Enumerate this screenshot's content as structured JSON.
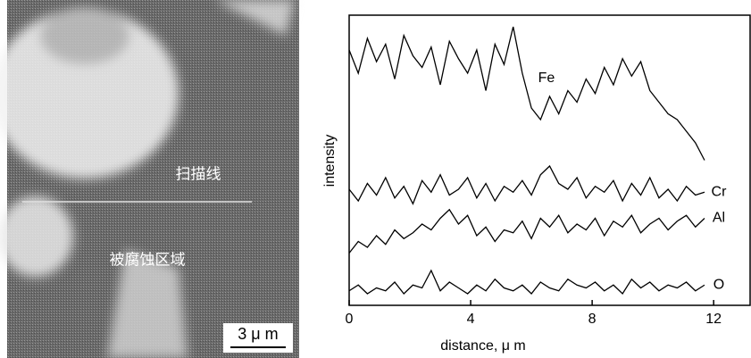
{
  "chart_data": {
    "type": "line",
    "x_label": "distance, μ m",
    "y_label": "intensity",
    "annotations": [
      "扫描线",
      "被腐蚀区域"
    ],
    "scale_bar": "3 μ m",
    "x": [
      0,
      0.3,
      0.6,
      0.9,
      1.2,
      1.5,
      1.8,
      2.1,
      2.4,
      2.7,
      3,
      3.3,
      3.6,
      3.9,
      4.2,
      4.5,
      4.8,
      5.1,
      5.4,
      5.7,
      6,
      6.3,
      6.6,
      6.9,
      7.2,
      7.5,
      7.8,
      8.1,
      8.4,
      8.7,
      9,
      9.3,
      9.6,
      9.9,
      10.2,
      10.5,
      10.8,
      11.1,
      11.4,
      11.7
    ],
    "series": [
      {
        "name": "Fe",
        "color": "#000000",
        "values": [
          88,
          80,
          92,
          84,
          90,
          78,
          93,
          86,
          82,
          89,
          76,
          91,
          85,
          80,
          88,
          74,
          90,
          83,
          96,
          80,
          68,
          64,
          72,
          66,
          74,
          70,
          78,
          73,
          82,
          76,
          85,
          79,
          84,
          74,
          70,
          66,
          64,
          60,
          56,
          50
        ]
      },
      {
        "name": "Cr",
        "color": "#000000",
        "values": [
          40,
          36,
          42,
          38,
          44,
          37,
          41,
          35,
          43,
          39,
          45,
          38,
          40,
          44,
          37,
          42,
          36,
          41,
          39,
          43,
          38,
          45,
          48,
          42,
          40,
          44,
          37,
          41,
          39,
          43,
          36,
          42,
          38,
          44,
          37,
          40,
          36,
          41,
          38,
          39
        ]
      },
      {
        "name": "Al",
        "color": "#000000",
        "values": [
          18,
          22,
          20,
          24,
          21,
          26,
          23,
          25,
          28,
          26,
          30,
          33,
          28,
          31,
          24,
          27,
          22,
          26,
          25,
          29,
          23,
          30,
          27,
          31,
          25,
          28,
          26,
          30,
          24,
          29,
          27,
          31,
          25,
          28,
          30,
          26,
          29,
          31,
          27,
          30
        ]
      },
      {
        "name": "O",
        "color": "#000000",
        "values": [
          5,
          7,
          4,
          6,
          5,
          8,
          4,
          7,
          6,
          12,
          5,
          8,
          6,
          4,
          7,
          5,
          9,
          6,
          5,
          7,
          4,
          8,
          6,
          5,
          9,
          7,
          6,
          8,
          5,
          7,
          4,
          9,
          6,
          8,
          5,
          7,
          6,
          8,
          5,
          7
        ]
      }
    ],
    "xlim": [
      0,
      13.2
    ],
    "xticks": [
      0,
      4,
      8,
      12
    ],
    "ylim": [
      0,
      100
    ]
  }
}
